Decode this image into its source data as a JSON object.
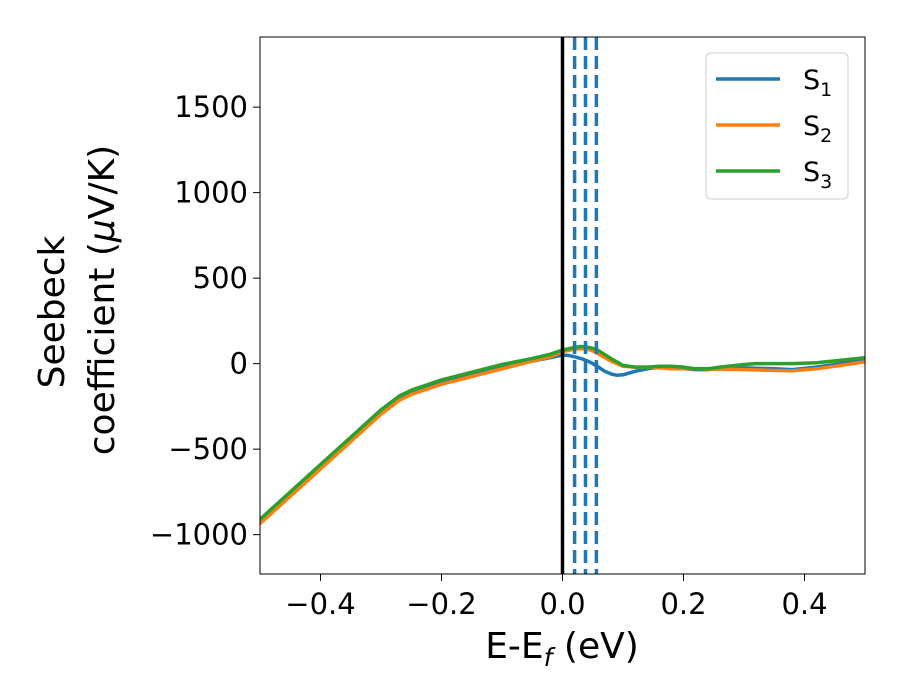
{
  "chart_data": {
    "type": "line",
    "xlabel": "E-E",
    "xlabel_sub": "f",
    "xlabel_unit": " (eV)",
    "ylabel_line1": "Seebeck",
    "ylabel_line2_pre": "coefficient  (",
    "ylabel_mu": "μ",
    "ylabel_line2_post": "V/K)",
    "xlim": [
      -0.5,
      0.5
    ],
    "ylim": [
      -1230,
      1910
    ],
    "xticks": [
      -0.4,
      -0.2,
      0.0,
      0.2,
      0.4
    ],
    "xtick_labels": [
      "−0.4",
      "−0.2",
      "0.0",
      "0.2",
      "0.4"
    ],
    "yticks": [
      -1000,
      -500,
      0,
      500,
      1000,
      1500
    ],
    "ytick_labels": [
      "−1000",
      "−500",
      "0",
      "500",
      "1000",
      "1500"
    ],
    "grid": false,
    "legend_position": "top-right",
    "fermi_line": {
      "x": 0.0,
      "color": "#000000"
    },
    "dashed_lines": {
      "x": [
        0.02,
        0.038,
        0.056
      ],
      "color": "#1f77b4"
    },
    "series": [
      {
        "name": "S",
        "sub": "1",
        "color": "#1f77b4",
        "x": [
          -0.5,
          -0.45,
          -0.4,
          -0.35,
          -0.3,
          -0.27,
          -0.25,
          -0.2,
          -0.15,
          -0.1,
          -0.05,
          -0.02,
          0.0,
          0.01,
          0.02,
          0.03,
          0.04,
          0.05,
          0.06,
          0.07,
          0.08,
          0.09,
          0.1,
          0.12,
          0.14,
          0.16,
          0.18,
          0.2,
          0.22,
          0.24,
          0.26,
          0.3,
          0.35,
          0.38,
          0.42,
          0.46,
          0.5
        ],
        "y": [
          -920,
          -760,
          -600,
          -440,
          -280,
          -205,
          -170,
          -110,
          -65,
          -20,
          15,
          35,
          50,
          48,
          40,
          30,
          18,
          0,
          -22,
          -45,
          -60,
          -68,
          -65,
          -45,
          -30,
          -20,
          -25,
          -30,
          -35,
          -35,
          -30,
          -25,
          -30,
          -35,
          -20,
          0,
          20
        ]
      },
      {
        "name": "S",
        "sub": "2",
        "color": "#ff7f0e",
        "x": [
          -0.5,
          -0.45,
          -0.4,
          -0.35,
          -0.3,
          -0.27,
          -0.25,
          -0.2,
          -0.15,
          -0.1,
          -0.05,
          -0.02,
          0.0,
          0.02,
          0.03,
          0.04,
          0.05,
          0.06,
          0.08,
          0.1,
          0.12,
          0.14,
          0.16,
          0.18,
          0.2,
          0.22,
          0.24,
          0.26,
          0.3,
          0.35,
          0.38,
          0.42,
          0.46,
          0.5
        ],
        "y": [
          -935,
          -775,
          -615,
          -455,
          -295,
          -215,
          -180,
          -120,
          -75,
          -30,
          15,
          40,
          70,
          85,
          88,
          85,
          75,
          55,
          15,
          -15,
          -20,
          -20,
          -25,
          -30,
          -30,
          -30,
          -32,
          -32,
          -35,
          -40,
          -42,
          -30,
          -10,
          10
        ]
      },
      {
        "name": "S",
        "sub": "3",
        "color": "#2ca02c",
        "x": [
          -0.5,
          -0.45,
          -0.4,
          -0.35,
          -0.3,
          -0.27,
          -0.25,
          -0.2,
          -0.15,
          -0.1,
          -0.05,
          -0.02,
          0.0,
          0.02,
          0.03,
          0.04,
          0.05,
          0.06,
          0.08,
          0.1,
          0.12,
          0.14,
          0.16,
          0.18,
          0.2,
          0.22,
          0.24,
          0.26,
          0.3,
          0.32,
          0.35,
          0.38,
          0.42,
          0.46,
          0.5
        ],
        "y": [
          -910,
          -750,
          -590,
          -430,
          -270,
          -190,
          -155,
          -95,
          -50,
          -5,
          30,
          55,
          80,
          95,
          100,
          98,
          90,
          75,
          30,
          -10,
          -20,
          -20,
          -15,
          -15,
          -20,
          -30,
          -30,
          -20,
          -5,
          0,
          0,
          0,
          5,
          20,
          35
        ]
      }
    ]
  }
}
